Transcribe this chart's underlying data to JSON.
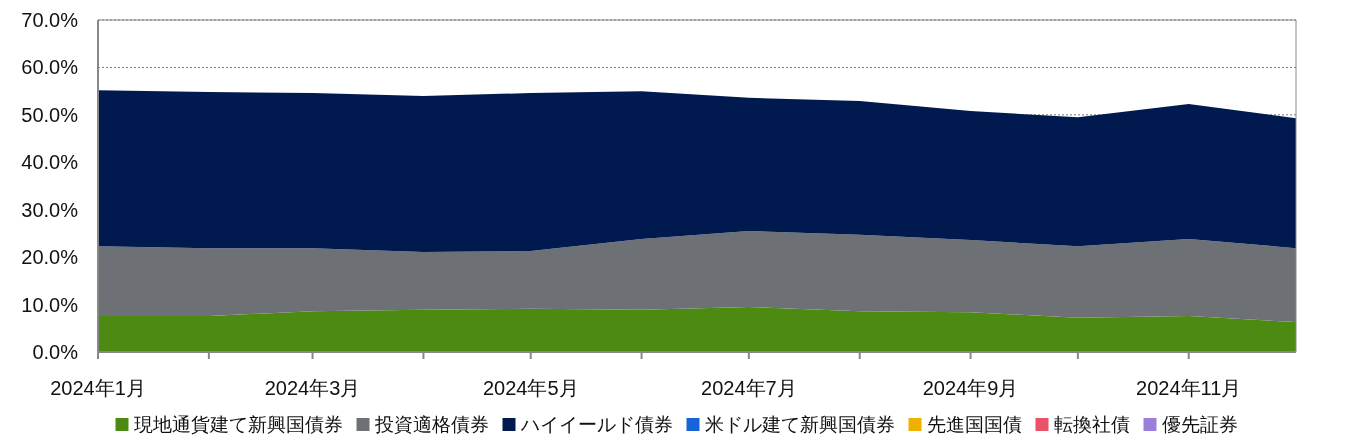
{
  "chart_data": {
    "type": "area",
    "stacked": true,
    "x": [
      "2024-01",
      "2024-02",
      "2024-03",
      "2024-04",
      "2024-05",
      "2024-06",
      "2024-07",
      "2024-08",
      "2024-09",
      "2024-10",
      "2024-11",
      "2024-12"
    ],
    "xlim": [
      "2024-01",
      "2024-12"
    ],
    "xticks": [
      {
        "value": "2024-01",
        "label": "2024年1月"
      },
      {
        "value": "2024-02",
        "label": null
      },
      {
        "value": "2024-03",
        "label": "2024年3月"
      },
      {
        "value": "2024-04",
        "label": null
      },
      {
        "value": "2024-05",
        "label": "2024年5月"
      },
      {
        "value": "2024-06",
        "label": null
      },
      {
        "value": "2024-07",
        "label": "2024年7月"
      },
      {
        "value": "2024-08",
        "label": null
      },
      {
        "value": "2024-09",
        "label": "2024年9月"
      },
      {
        "value": "2024-10",
        "label": null
      },
      {
        "value": "2024-11",
        "label": "2024年11月"
      }
    ],
    "ylim": [
      0,
      70
    ],
    "yticks": [
      {
        "value": 0,
        "label": "0.0%"
      },
      {
        "value": 10,
        "label": "10.0%"
      },
      {
        "value": 20,
        "label": "20.0%"
      },
      {
        "value": 30,
        "label": "30.0%"
      },
      {
        "value": 40,
        "label": "40.0%"
      },
      {
        "value": 50,
        "label": "50.0%"
      },
      {
        "value": 60,
        "label": "60.0%"
      },
      {
        "value": 70,
        "label": "70.0%"
      }
    ],
    "grid": "y",
    "legend": "bottom",
    "series": [
      {
        "name": "現地通貨建て新興国債券",
        "color": "#4c8a12",
        "values": [
          7.6,
          7.6,
          8.6,
          8.9,
          9.1,
          8.9,
          9.5,
          8.6,
          8.4,
          7.2,
          7.6,
          6.3
        ]
      },
      {
        "name": "投資適格債券",
        "color": "#6d7175",
        "values": [
          14.7,
          14.3,
          13.3,
          12.2,
          12.2,
          14.9,
          16.0,
          16.1,
          15.2,
          15.1,
          16.2,
          15.6
        ]
      },
      {
        "name": "ハイイールド債券",
        "color": "#001a4f",
        "values": [
          32.9,
          32.9,
          32.7,
          32.9,
          33.3,
          31.2,
          28.1,
          28.2,
          27.2,
          27.2,
          28.5,
          27.4
        ]
      },
      {
        "name": "米ドル建て新興国債券",
        "color": "#1565d8",
        "values": [
          null,
          null,
          null,
          null,
          null,
          null,
          null,
          null,
          null,
          null,
          null,
          null
        ]
      },
      {
        "name": "先進国国債",
        "color": "#f0b000",
        "values": [
          null,
          null,
          null,
          null,
          null,
          null,
          null,
          null,
          null,
          null,
          null,
          null
        ]
      },
      {
        "name": "転換社債",
        "color": "#e8536a",
        "values": [
          null,
          null,
          null,
          null,
          null,
          null,
          null,
          null,
          null,
          null,
          null,
          null
        ]
      },
      {
        "name": "優先証券",
        "color": "#9b7fd8",
        "values": [
          null,
          null,
          null,
          null,
          null,
          null,
          null,
          null,
          null,
          null,
          null,
          null
        ]
      }
    ]
  }
}
